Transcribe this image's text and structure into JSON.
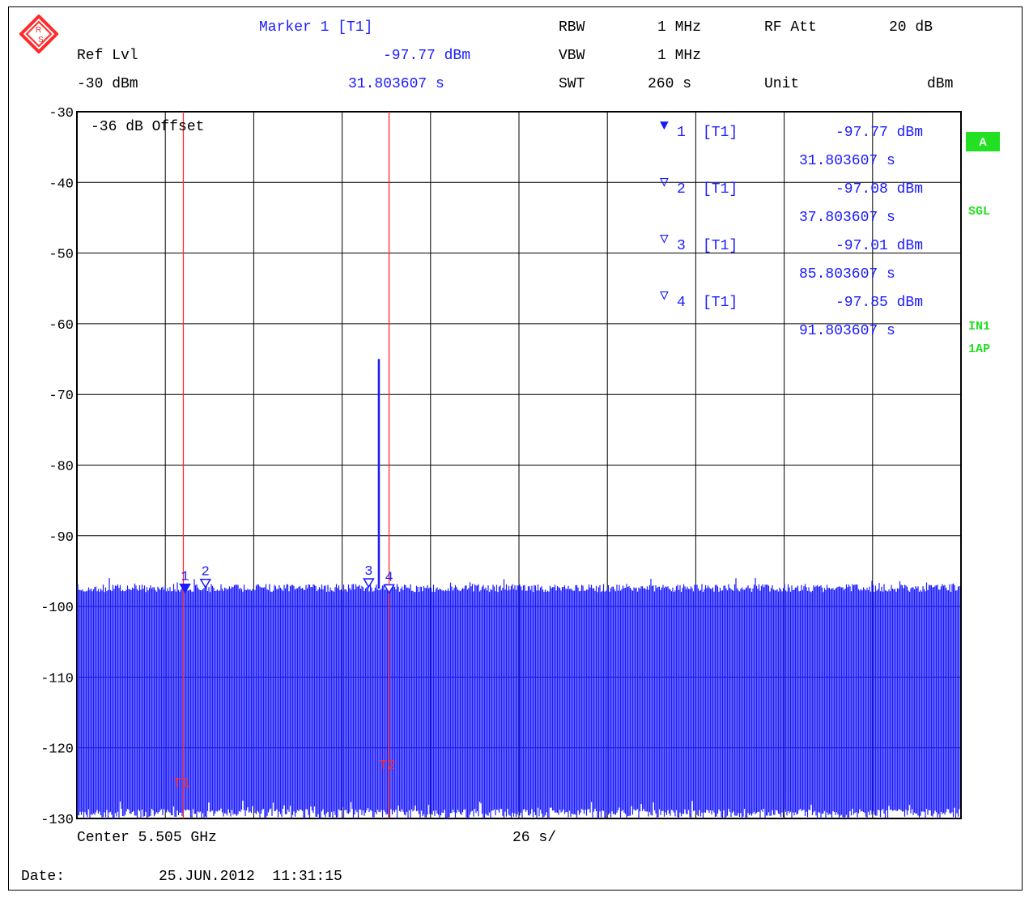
{
  "header": {
    "marker_title": "Marker 1 [T1]",
    "ref_lvl_label": "Ref Lvl",
    "marker_value": "-97.77 dBm",
    "ref_lvl_value": "-30 dBm",
    "marker_time": "31.803607 s",
    "rbw_label": "RBW",
    "rbw_value": "1 MHz",
    "vbw_label": "VBW",
    "vbw_value": "1 MHz",
    "swt_label": "SWT",
    "swt_value": "260 s",
    "rf_att_label": "RF Att",
    "rf_att_value": "20 dB",
    "unit_label": "Unit",
    "unit_value": "dBm"
  },
  "offset_label": "-36 dB Offset",
  "side_badges": {
    "a": "A",
    "sgl": "SGL",
    "in1": "IN1",
    "ap": "1AP"
  },
  "footer": {
    "center": "Center 5.505 GHz",
    "span": "26 s/",
    "date_label": "Date:",
    "date_value": "25.JUN.2012  11:31:15"
  },
  "marker_table": [
    {
      "symbol": "▼",
      "num": "1",
      "trace": "[T1]",
      "level": "-97.77 dBm",
      "time": "31.803607 s"
    },
    {
      "symbol": "▽",
      "num": "2",
      "trace": "[T1]",
      "level": "-97.08 dBm",
      "time": "37.803607 s"
    },
    {
      "symbol": "▽",
      "num": "3",
      "trace": "[T1]",
      "level": "-97.01 dBm",
      "time": "85.803607 s"
    },
    {
      "symbol": "▽",
      "num": "4",
      "trace": "[T1]",
      "level": "-97.85 dBm",
      "time": "91.803607 s"
    }
  ],
  "chart_data": {
    "type": "line",
    "xlabel": "",
    "ylabel": "",
    "xlim": [
      0,
      260
    ],
    "ylim": [
      -130,
      -30
    ],
    "y_ticks": [
      "-30",
      "-40",
      "-50",
      "-60",
      "-70",
      "-80",
      "-90",
      "-100",
      "-110",
      "-120",
      "-130"
    ],
    "grid": true,
    "series": [
      {
        "name": "",
        "color": "#1a1aff",
        "noise_top": -97.5,
        "noise_bottom": -130,
        "spike": {
          "x": 88.8,
          "y": -65
        }
      }
    ],
    "markers": [
      {
        "label": "1",
        "x": 31.803607,
        "y": -97.77
      },
      {
        "label": "2",
        "x": 37.803607,
        "y": -97.08
      },
      {
        "label": "3",
        "x": 85.803607,
        "y": -97.01
      },
      {
        "label": "4",
        "x": 91.803607,
        "y": -97.85
      }
    ],
    "time_lines": [
      {
        "label": "T1",
        "x": 31.3,
        "color": "#ff2a2a"
      },
      {
        "label": "T2",
        "x": 91.8,
        "color": "#ff2a2a"
      }
    ]
  }
}
